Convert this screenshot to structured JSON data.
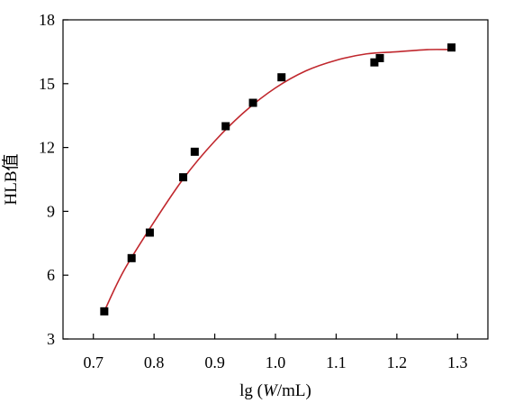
{
  "chart_data": {
    "type": "scatter",
    "title": "",
    "xlabel": "lg (W/mL)",
    "xlabel_parts": {
      "prefix": "lg (",
      "italic": "W",
      "suffix": "/mL)"
    },
    "ylabel": "HLB值",
    "xlim": [
      0.65,
      1.35
    ],
    "ylim": [
      3,
      18
    ],
    "xticks": [
      0.7,
      0.8,
      0.9,
      1.0,
      1.1,
      1.2,
      1.3
    ],
    "xtick_labels": [
      "0.7",
      "0.8",
      "0.9",
      "1.0",
      "1.1",
      "1.2",
      "1.3"
    ],
    "yticks": [
      3,
      6,
      9,
      12,
      15,
      18
    ],
    "ytick_labels": [
      "3",
      "6",
      "9",
      "12",
      "15",
      "18"
    ],
    "grid": false,
    "series": [
      {
        "kind": "points",
        "marker": "square",
        "color": "#000000",
        "x": [
          0.718,
          0.763,
          0.793,
          0.848,
          0.867,
          0.918,
          0.963,
          1.01,
          1.163,
          1.172,
          1.29
        ],
        "y": [
          4.3,
          6.8,
          8.0,
          10.6,
          11.8,
          13.0,
          14.1,
          15.3,
          16.0,
          16.2,
          16.7
        ]
      },
      {
        "kind": "fit-curve",
        "color": "#c0272d",
        "x": [
          0.718,
          0.75,
          0.8,
          0.85,
          0.9,
          0.95,
          1.0,
          1.05,
          1.1,
          1.15,
          1.2,
          1.25,
          1.29
        ],
        "y": [
          4.3,
          6.2,
          8.5,
          10.6,
          12.3,
          13.7,
          14.8,
          15.6,
          16.1,
          16.4,
          16.5,
          16.6,
          16.6
        ]
      }
    ]
  }
}
